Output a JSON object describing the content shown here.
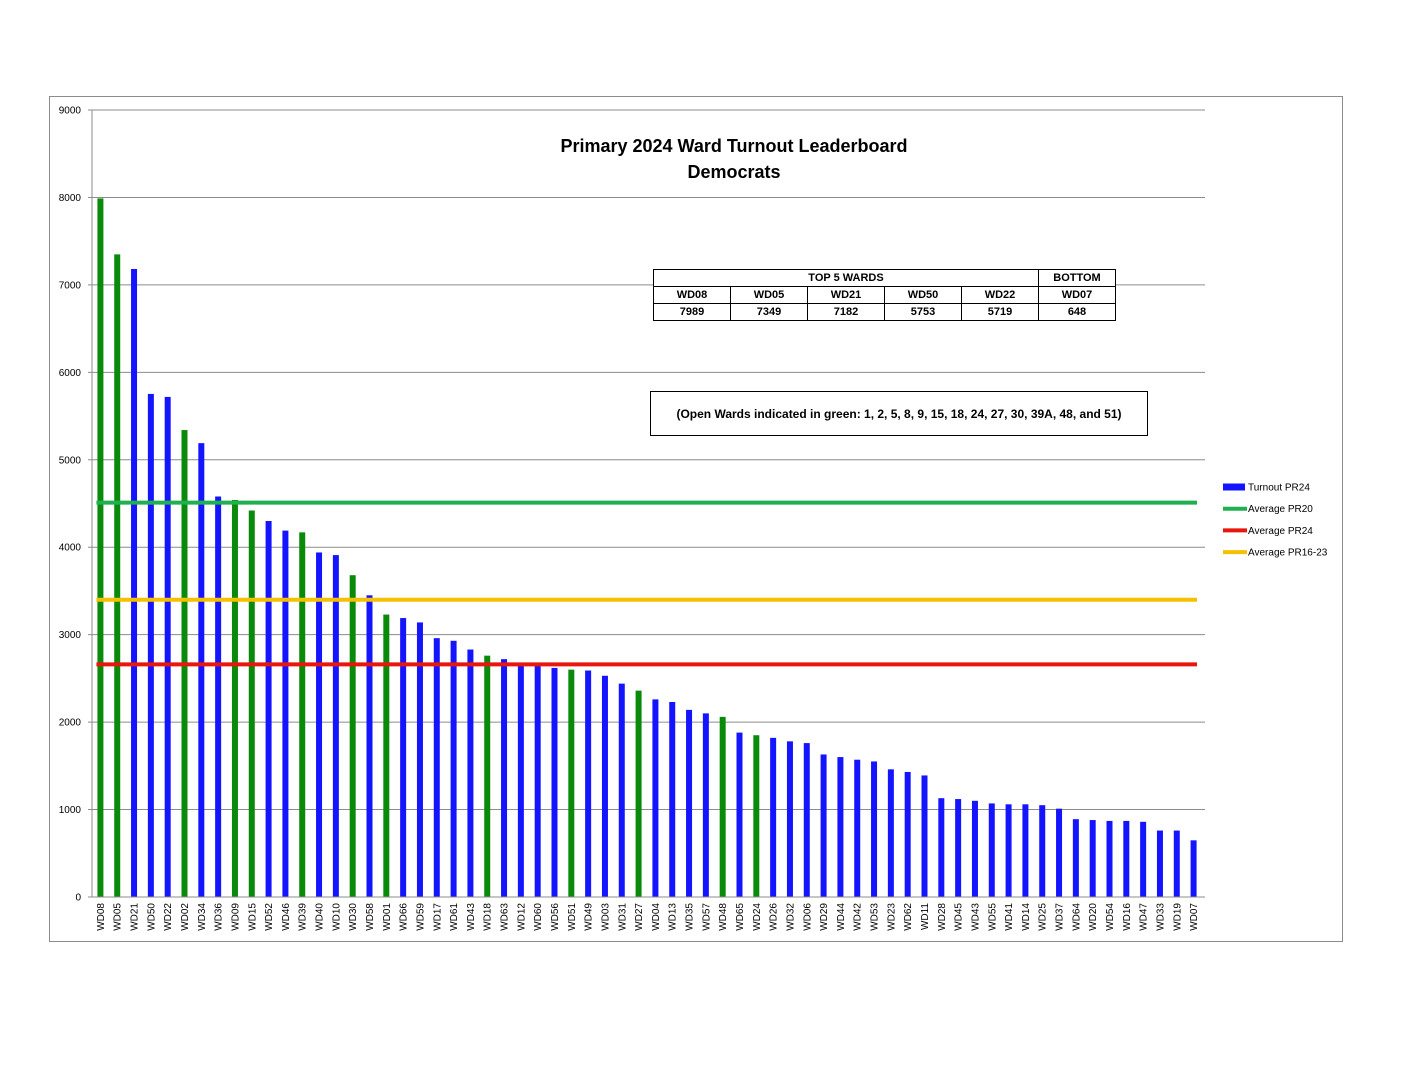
{
  "chart_data": {
    "type": "bar",
    "title": "Primary 2024 Ward Turnout Leaderboard",
    "subtitle": "Democrats",
    "ylim": [
      0,
      9000
    ],
    "yticks": [
      0,
      1000,
      2000,
      3000,
      4000,
      5000,
      6000,
      7000,
      8000,
      9000
    ],
    "grid": true,
    "legend_position": "right",
    "colors": {
      "turnout": "#1414ff",
      "open_ward": "#0a8a0a",
      "avg_pr20": "#1fb14f",
      "avg_pr24": "#e8160c",
      "avg_pr16_23": "#f5c000"
    },
    "categories": [
      "WD08",
      "WD05",
      "WD21",
      "WD50",
      "WD22",
      "WD02",
      "WD34",
      "WD36",
      "WD09",
      "WD15",
      "WD52",
      "WD46",
      "WD39",
      "WD40",
      "WD10",
      "WD30",
      "WD58",
      "WD01",
      "WD66",
      "WD59",
      "WD17",
      "WD61",
      "WD43",
      "WD18",
      "WD63",
      "WD12",
      "WD60",
      "WD56",
      "WD51",
      "WD49",
      "WD03",
      "WD31",
      "WD27",
      "WD04",
      "WD13",
      "WD35",
      "WD57",
      "WD48",
      "WD65",
      "WD24",
      "WD26",
      "WD32",
      "WD06",
      "WD29",
      "WD44",
      "WD42",
      "WD53",
      "WD23",
      "WD62",
      "WD11",
      "WD28",
      "WD45",
      "WD43",
      "WD55",
      "WD41",
      "WD14",
      "WD25",
      "WD37",
      "WD64",
      "WD20",
      "WD54",
      "WD16",
      "WD47",
      "WD33",
      "WD19",
      "WD07"
    ],
    "series": [
      {
        "name": "Turnout PR24",
        "values": [
          7989,
          7349,
          7182,
          5753,
          5719,
          5340,
          5190,
          4580,
          4540,
          4420,
          4300,
          4190,
          4170,
          3940,
          3910,
          3680,
          3450,
          3230,
          3190,
          3140,
          2960,
          2930,
          2830,
          2760,
          2720,
          2660,
          2650,
          2620,
          2600,
          2590,
          2530,
          2440,
          2360,
          2260,
          2230,
          2140,
          2100,
          2060,
          1880,
          1850,
          1820,
          1780,
          1760,
          1630,
          1600,
          1570,
          1550,
          1460,
          1430,
          1390,
          1130,
          1120,
          1100,
          1070,
          1060,
          1060,
          1050,
          1010,
          890,
          880,
          870,
          870,
          860,
          760,
          760,
          648
        ],
        "open_ward": [
          true,
          true,
          false,
          false,
          false,
          true,
          false,
          false,
          true,
          true,
          false,
          false,
          true,
          false,
          false,
          true,
          false,
          true,
          false,
          false,
          false,
          false,
          false,
          true,
          false,
          false,
          false,
          false,
          true,
          false,
          false,
          false,
          true,
          false,
          false,
          false,
          false,
          true,
          false,
          true,
          false,
          false,
          false,
          false,
          false,
          false,
          false,
          false,
          false,
          false,
          false,
          false,
          false,
          false,
          false,
          false,
          false,
          false,
          false,
          false,
          false,
          false,
          false,
          false,
          false,
          false
        ]
      },
      {
        "name": "Average PR20",
        "value": 4510
      },
      {
        "name": "Average PR24",
        "value": 2660
      },
      {
        "name": "Average PR16-23",
        "value": 3400
      }
    ]
  },
  "leaderboard": {
    "top_header": "TOP 5 WARDS",
    "bottom_header": "BOTTOM",
    "top": [
      {
        "ward": "WD08",
        "value": "7989"
      },
      {
        "ward": "WD05",
        "value": "7349"
      },
      {
        "ward": "WD21",
        "value": "7182"
      },
      {
        "ward": "WD50",
        "value": "5753"
      },
      {
        "ward": "WD22",
        "value": "5719"
      }
    ],
    "bottom": {
      "ward": "WD07",
      "value": "648"
    }
  },
  "note": "(Open Wards indicated in green:  1, 2, 5, 8, 9, 15, 18, 24, 27, 30, 39A, 48, and 51)"
}
